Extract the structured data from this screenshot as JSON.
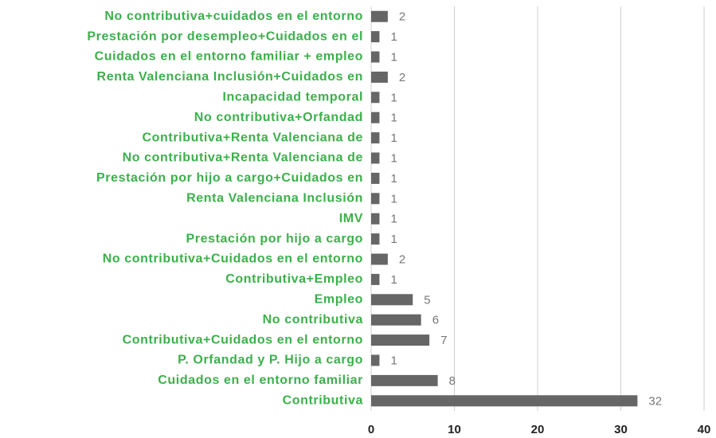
{
  "chart_data": {
    "type": "bar",
    "orientation": "horizontal",
    "categories": [
      "No contributiva+cuidados en el entorno",
      "Prestación por desempleo+Cuidados en el",
      "Cuidados en el entorno familiar + empleo",
      "Renta Valenciana Inclusión+Cuidados en",
      "Incapacidad temporal",
      "No contributiva+Orfandad",
      "Contributiva+Renta Valenciana de",
      "No contributiva+Renta Valenciana de",
      "Prestación por hijo a cargo+Cuidados en",
      "Renta Valenciana Inclusión",
      "IMV",
      "Prestación por hijo a cargo",
      "No contributiva+Cuidados en el entorno",
      "Contributiva+Empleo",
      "Empleo",
      "No contributiva",
      "Contributiva+Cuidados en el entorno",
      "P. Orfandad y P. Hijo a cargo",
      "Cuidados en el entorno familiar",
      "Contributiva"
    ],
    "values": [
      2,
      1,
      1,
      2,
      1,
      1,
      1,
      1,
      1,
      1,
      1,
      1,
      2,
      1,
      5,
      6,
      7,
      1,
      8,
      32
    ],
    "color": "#666666",
    "xlim": [
      0,
      40
    ],
    "xticks": [
      0,
      10,
      20,
      30,
      40
    ],
    "grid": true
  }
}
